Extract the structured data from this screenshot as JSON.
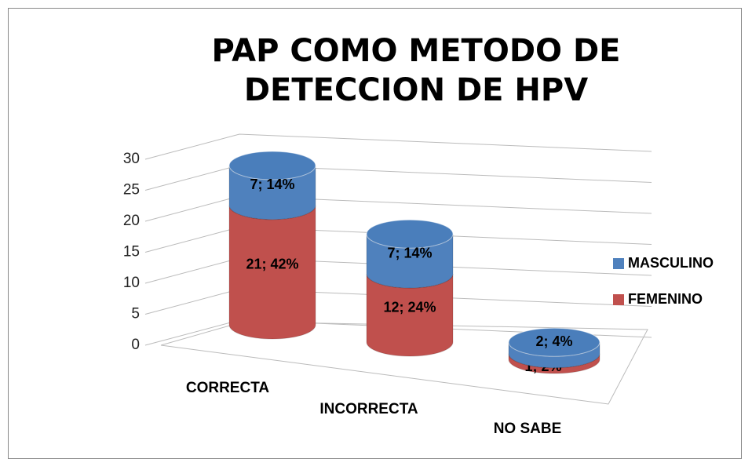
{
  "chart_data": {
    "type": "bar3d-cylinder-stacked",
    "title": "PAP COMO METODO DE DETECCION DE HPV",
    "categories": [
      "CORRECTA",
      "INCORRECTA",
      "NO SABE"
    ],
    "series": [
      {
        "name": "FEMENINO",
        "color": "#c0504d",
        "values": [
          21,
          12,
          1
        ],
        "value_labels": [
          "21;  42%",
          "12;  24%",
          "1; 2%"
        ]
      },
      {
        "name": "MASCULINO",
        "color": "#4f81bd",
        "values": [
          7,
          7,
          2
        ],
        "value_labels": [
          "7;  14%",
          "7;  14%",
          "2; 4%"
        ]
      }
    ],
    "ylim": [
      0,
      30
    ],
    "yticks": [
      0,
      5,
      10,
      15,
      20,
      25,
      30
    ],
    "grid": true,
    "legend": "right"
  }
}
